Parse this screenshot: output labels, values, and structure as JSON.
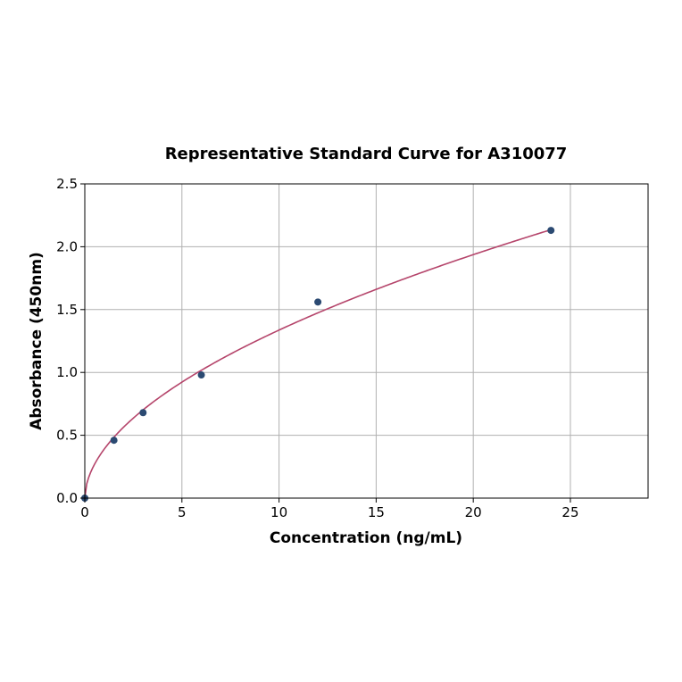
{
  "chart_data": {
    "type": "scatter",
    "title": "Representative Standard Curve for A310077",
    "xlabel": "Concentration (ng/mL)",
    "ylabel": "Absorbance (450nm)",
    "xlim": [
      0,
      29
    ],
    "ylim": [
      0,
      2.5
    ],
    "xticks": [
      0,
      5,
      10,
      15,
      20,
      25
    ],
    "yticks": [
      0.0,
      0.5,
      1.0,
      1.5,
      2.0,
      2.5
    ],
    "xtick_labels": [
      "0",
      "5",
      "10",
      "15",
      "20",
      "25"
    ],
    "ytick_labels": [
      "0.0",
      "0.5",
      "1.0",
      "1.5",
      "2.0",
      "2.5"
    ],
    "grid": true,
    "points": {
      "x": [
        0,
        1.5,
        3,
        6,
        12,
        24
      ],
      "y": [
        0.0,
        0.46,
        0.68,
        0.98,
        1.56,
        2.13
      ],
      "color": "#2b4a72"
    },
    "fit_curve": {
      "kind": "power",
      "a": 0.39,
      "b": 0.535,
      "x_range": [
        0,
        24
      ],
      "color": "#b5456b"
    }
  }
}
